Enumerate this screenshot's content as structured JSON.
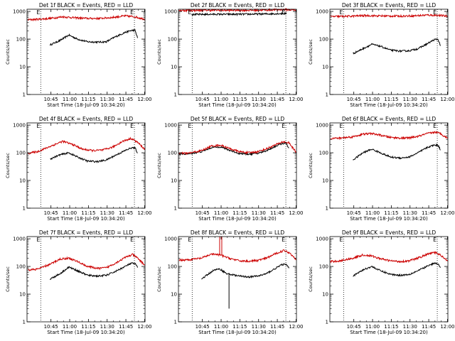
{
  "figure": {
    "type": "line",
    "yscale": "log",
    "ylim": [
      1,
      1200
    ],
    "xlim_minutes": [
      -8.5,
      86
    ],
    "x_reference": "10:34:20",
    "yticks": [
      1,
      10,
      100,
      1000
    ],
    "ytick_labels": [
      "1",
      "10",
      "100",
      "1000"
    ],
    "xtick_minutes": [
      10.67,
      25.67,
      40.67,
      55.67,
      70.67,
      85.67
    ],
    "xtick_labels": [
      "10:45",
      "11:00",
      "11:15",
      "11:30",
      "11:45",
      "12:00"
    ],
    "xlabel": "Start Time (18-Jul-09 10:34:20)",
    "ylabel": "Counts/sec",
    "vlines_minutes": [
      2.5,
      77.5
    ],
    "vline_labels": [
      "E",
      "E"
    ],
    "series_colors": {
      "events": "#000000",
      "lld": "#cc0000"
    }
  },
  "chart_data": [
    {
      "type": "line",
      "title": "Det 1f BLACK = Events, RED = LLD",
      "xlabel": "Start Time (18-Jul-09 10:34:20)",
      "ylabel": "Counts/sec",
      "series": [
        {
          "name": "Events",
          "color": "#000000",
          "x": [
            10,
            18,
            25,
            32,
            40,
            48,
            55,
            62,
            70,
            75,
            78,
            80
          ],
          "y": [
            62,
            90,
            140,
            100,
            80,
            78,
            80,
            120,
            175,
            205,
            210,
            110
          ]
        },
        {
          "name": "LLD",
          "color": "#cc0000",
          "x": [
            -8,
            0,
            10,
            20,
            30,
            40,
            50,
            60,
            70,
            78,
            86
          ],
          "y": [
            500,
            520,
            560,
            640,
            590,
            560,
            560,
            610,
            690,
            640,
            520
          ]
        }
      ]
    },
    {
      "type": "line",
      "title": "Det 2f BLACK = Events, RED = LLD",
      "xlabel": "Start Time (18-Jul-09 10:34:20)",
      "ylabel": "Counts/sec",
      "series": [
        {
          "name": "Events",
          "color": "#000000",
          "x": [
            2,
            10,
            20,
            30,
            40,
            50,
            60,
            70,
            78
          ],
          "y": [
            780,
            780,
            790,
            790,
            790,
            800,
            810,
            830,
            840
          ]
        },
        {
          "name": "LLD",
          "color": "#cc0000",
          "x": [
            -8,
            0,
            10,
            20,
            30,
            40,
            50,
            60,
            70,
            78,
            86
          ],
          "y": [
            1080,
            1090,
            1100,
            1110,
            1100,
            1100,
            1100,
            1120,
            1150,
            1160,
            1120
          ]
        }
      ]
    },
    {
      "type": "line",
      "title": "Det 3f BLACK = Events, RED = LLD",
      "xlabel": "Start Time (18-Jul-09 10:34:20)",
      "ylabel": "Counts/sec",
      "series": [
        {
          "name": "Events",
          "color": "#000000",
          "x": [
            10,
            18,
            25,
            32,
            40,
            48,
            55,
            62,
            70,
            75,
            78,
            80
          ],
          "y": [
            30,
            45,
            65,
            55,
            40,
            37,
            38,
            45,
            70,
            95,
            100,
            60
          ]
        },
        {
          "name": "LLD",
          "color": "#cc0000",
          "x": [
            -8,
            0,
            10,
            20,
            30,
            40,
            50,
            60,
            70,
            78,
            86
          ],
          "y": [
            650,
            660,
            680,
            710,
            690,
            680,
            680,
            700,
            740,
            720,
            680
          ]
        }
      ]
    },
    {
      "type": "line",
      "title": "Det 4f BLACK = Events, RED = LLD",
      "xlabel": "Start Time (18-Jul-09 10:34:20)",
      "ylabel": "Counts/sec",
      "series": [
        {
          "name": "Events",
          "color": "#000000",
          "x": [
            10,
            18,
            25,
            32,
            40,
            48,
            55,
            62,
            70,
            75,
            78,
            80
          ],
          "y": [
            60,
            85,
            100,
            70,
            50,
            48,
            55,
            80,
            120,
            150,
            150,
            100
          ]
        },
        {
          "name": "LLD",
          "color": "#cc0000",
          "x": [
            -8,
            0,
            10,
            20,
            28,
            36,
            44,
            52,
            60,
            68,
            75,
            80,
            86
          ],
          "y": [
            95,
            110,
            170,
            260,
            200,
            135,
            120,
            125,
            160,
            260,
            330,
            240,
            130
          ]
        }
      ]
    },
    {
      "type": "line",
      "title": "Det 5f BLACK = Events, RED = LLD",
      "xlabel": "Start Time (18-Jul-09 10:34:20)",
      "ylabel": "Counts/sec",
      "series": [
        {
          "name": "Events",
          "color": "#000000",
          "x": [
            -8,
            0,
            10,
            18,
            25,
            32,
            40,
            48,
            55,
            62,
            70,
            75,
            78,
            80
          ],
          "y": [
            90,
            92,
            110,
            155,
            165,
            125,
            95,
            90,
            95,
            120,
            180,
            220,
            215,
            140
          ]
        },
        {
          "name": "LLD",
          "color": "#cc0000",
          "x": [
            -8,
            0,
            10,
            18,
            25,
            32,
            40,
            48,
            55,
            62,
            70,
            75,
            80,
            86
          ],
          "y": [
            95,
            97,
            120,
            175,
            190,
            145,
            110,
            100,
            110,
            140,
            200,
            250,
            230,
            100
          ]
        }
      ]
    },
    {
      "type": "line",
      "title": "Det 6f BLACK = Events, RED = LLD",
      "xlabel": "Start Time (18-Jul-09 10:34:20)",
      "ylabel": "Counts/sec",
      "series": [
        {
          "name": "Events",
          "color": "#000000",
          "x": [
            10,
            18,
            25,
            32,
            40,
            48,
            55,
            62,
            70,
            75,
            78,
            80
          ],
          "y": [
            55,
            100,
            135,
            100,
            70,
            65,
            70,
            100,
            160,
            190,
            190,
            130
          ]
        },
        {
          "name": "LLD",
          "color": "#cc0000",
          "x": [
            -8,
            0,
            10,
            18,
            25,
            32,
            40,
            48,
            55,
            62,
            70,
            76,
            80,
            86
          ],
          "y": [
            330,
            340,
            380,
            470,
            500,
            430,
            360,
            340,
            345,
            390,
            500,
            560,
            500,
            330
          ]
        }
      ]
    },
    {
      "type": "line",
      "title": "Det 7f BLACK = Events, RED = LLD",
      "xlabel": "Start Time (18-Jul-09 10:34:20)",
      "ylabel": "Counts/sec",
      "series": [
        {
          "name": "Events",
          "color": "#000000",
          "x": [
            10,
            18,
            25,
            32,
            40,
            48,
            55,
            62,
            70,
            75,
            78,
            80
          ],
          "y": [
            35,
            55,
            95,
            70,
            48,
            45,
            48,
            65,
            100,
            130,
            125,
            95
          ]
        },
        {
          "name": "LLD",
          "color": "#cc0000",
          "x": [
            -8,
            0,
            10,
            18,
            25,
            32,
            40,
            48,
            55,
            62,
            70,
            76,
            80,
            86
          ],
          "y": [
            75,
            80,
            120,
            185,
            200,
            150,
            100,
            85,
            90,
            130,
            210,
            270,
            200,
            110
          ]
        }
      ]
    },
    {
      "type": "line",
      "title": "Det 8f BLACK = Events, RED = LLD",
      "xlabel": "Start Time (18-Jul-09 10:34:20)",
      "ylabel": "Counts/sec",
      "series": [
        {
          "name": "Events",
          "color": "#000000",
          "x": [
            10,
            16,
            20,
            25,
            30,
            35,
            40,
            48,
            55,
            62,
            70,
            75,
            78,
            80
          ],
          "y": [
            35,
            55,
            75,
            80,
            55,
            50,
            45,
            42,
            45,
            55,
            90,
            120,
            115,
            85
          ]
        },
        {
          "name": "LLD",
          "color": "#cc0000",
          "x": [
            -8,
            0,
            10,
            18,
            25,
            32,
            40,
            48,
            55,
            62,
            70,
            76,
            80,
            86
          ],
          "y": [
            170,
            175,
            200,
            280,
            260,
            200,
            160,
            155,
            165,
            200,
            300,
            380,
            320,
            180
          ]
        }
      ],
      "annotations": [
        "LLD spike near 11:00 reaching top of axis",
        "Events dropout to ~3 near 11:07"
      ]
    },
    {
      "type": "line",
      "title": "Det 9f BLACK = Events, RED = LLD",
      "xlabel": "Start Time (18-Jul-09 10:34:20)",
      "ylabel": "Counts/sec",
      "series": [
        {
          "name": "Events",
          "color": "#000000",
          "x": [
            10,
            18,
            25,
            32,
            40,
            48,
            55,
            62,
            70,
            75,
            78,
            80
          ],
          "y": [
            45,
            75,
            100,
            70,
            52,
            48,
            52,
            70,
            105,
            130,
            125,
            90
          ]
        },
        {
          "name": "LLD",
          "color": "#cc0000",
          "x": [
            -8,
            0,
            10,
            18,
            25,
            32,
            40,
            48,
            55,
            62,
            70,
            76,
            80,
            86
          ],
          "y": [
            150,
            160,
            200,
            260,
            240,
            190,
            160,
            150,
            160,
            200,
            280,
            320,
            260,
            160
          ]
        }
      ]
    }
  ]
}
